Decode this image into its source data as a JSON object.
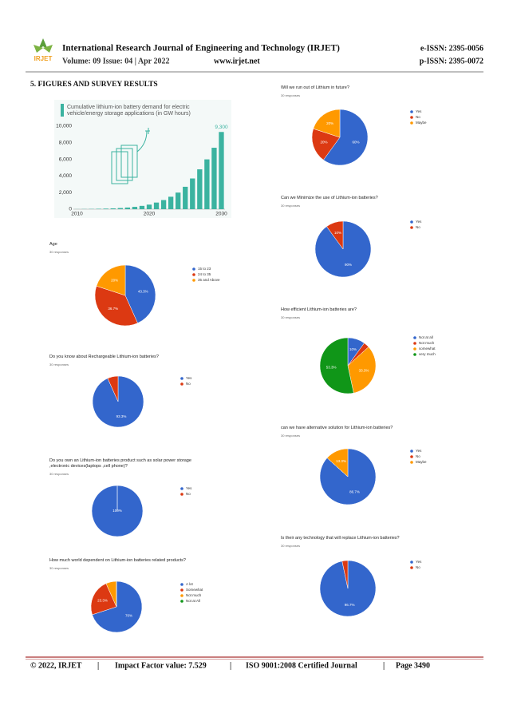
{
  "header": {
    "logo": "IRJET",
    "journal": "International Research Journal of Engineering and Technology (IRJET)",
    "eissn": "e-ISSN: 2395-0056",
    "volume": "Volume: 09 Issue: 04 | Apr 2022",
    "website": "www.irjet.net",
    "pissn": "p-ISSN: 2395-0072"
  },
  "section_title": "5. FIGURES AND SURVEY RESULTS",
  "chart_data": [
    {
      "type": "bar",
      "title": "Cumulative lithium-ion battery demand for electric vehicle/energy storage applications (in GW hours)",
      "categories": [
        "2010",
        null,
        null,
        null,
        null,
        null,
        null,
        null,
        null,
        null,
        "2020",
        null,
        null,
        null,
        null,
        null,
        null,
        null,
        null,
        null,
        "2030"
      ],
      "values": [
        10,
        20,
        30,
        50,
        70,
        100,
        140,
        200,
        280,
        400,
        550,
        800,
        1100,
        1500,
        2000,
        2700,
        3700,
        4800,
        6000,
        7400,
        9300
      ],
      "value_labels": [
        null,
        null,
        null,
        null,
        null,
        null,
        null,
        null,
        null,
        null,
        null,
        null,
        null,
        null,
        null,
        null,
        null,
        null,
        null,
        null,
        "9,300"
      ],
      "color": "#3bb3a0",
      "ylim": [
        0,
        10000
      ],
      "yticks": [
        0,
        {
          "value": 2000,
          "label": "2,000"
        },
        {
          "value": 4000,
          "label": "4,000"
        },
        {
          "value": 6000,
          "label": "6,000"
        },
        {
          "value": 8000,
          "label": "8,000"
        },
        {
          "value": 10000,
          "label": "10,000"
        }
      ],
      "grid": false
    },
    {
      "type": "pie",
      "title": "Age",
      "subtitle": "30 responses",
      "categories": [
        "15 to 23",
        "24 to 35",
        "35 and Above"
      ],
      "values": [
        43.3,
        36.7,
        20
      ],
      "value_labels": [
        "43.3%",
        "36.7%",
        "20%"
      ],
      "colors": [
        "#3366cc",
        "#dc3912",
        "#ff9900"
      ]
    },
    {
      "type": "pie",
      "title": "Do you know about Rechargeable Lithium-ion batteries?",
      "subtitle": "30 responses",
      "categories": [
        "Yes",
        "No"
      ],
      "values": [
        93.3,
        6.7
      ],
      "value_labels": [
        "93.3%",
        null
      ],
      "colors": [
        "#3366cc",
        "#dc3912"
      ]
    },
    {
      "type": "pie",
      "title": "Do you own an Lithium-ion batteries product such as solar power storage ,electronic devices(laptops ,cell phone)?",
      "subtitle": "30 responses",
      "categories": [
        "Yes",
        "No"
      ],
      "values": [
        100,
        0
      ],
      "value_labels": [
        "100%",
        null
      ],
      "colors": [
        "#3366cc",
        "#dc3912"
      ]
    },
    {
      "type": "pie",
      "title": "How much world dependent on Lithium-ion batteries related products?",
      "subtitle": "30 responses",
      "categories": [
        "A lot",
        "Somewhat",
        "Not much",
        "Not at All"
      ],
      "values": [
        70,
        23.3,
        6.7,
        0
      ],
      "value_labels": [
        "70%",
        "23.3%",
        null,
        null
      ],
      "colors": [
        "#3366cc",
        "#dc3912",
        "#ff9900",
        "#109618"
      ]
    },
    {
      "type": "pie",
      "title": "Will we run out of Lithium in future?",
      "subtitle": "30 responses",
      "categories": [
        "Yes",
        "No",
        "Maybe"
      ],
      "values": [
        60,
        20,
        20
      ],
      "value_labels": [
        "60%",
        "20%",
        "20%"
      ],
      "colors": [
        "#3366cc",
        "#dc3912",
        "#ff9900"
      ]
    },
    {
      "type": "pie",
      "title": "Can we Minimize the use of Lithium-ion batteries?",
      "subtitle": "30 responses",
      "categories": [
        "Yes",
        "No"
      ],
      "values": [
        90,
        10
      ],
      "value_labels": [
        "90%",
        "10%"
      ],
      "colors": [
        "#3366cc",
        "#dc3912"
      ]
    },
    {
      "type": "pie",
      "title": "How efficient Lithium-ion batteries are?",
      "subtitle": "30 responses",
      "categories": [
        "Not at all",
        "Not much",
        "somewhat",
        "very much"
      ],
      "values": [
        10,
        3.3,
        33.3,
        53.3
      ],
      "value_labels": [
        "10%",
        null,
        "33.3%",
        "53.3%"
      ],
      "colors": [
        "#3366cc",
        "#dc3912",
        "#ff9900",
        "#109618"
      ]
    },
    {
      "type": "pie",
      "title": "can we have alternative solution for Lithium-ion batteries?",
      "subtitle": "30 responses",
      "categories": [
        "Yes",
        "No",
        "Maybe"
      ],
      "values": [
        86.7,
        0,
        13.3
      ],
      "value_labels": [
        "86.7%",
        null,
        "13.3%"
      ],
      "colors": [
        "#3366cc",
        "#dc3912",
        "#ff9900"
      ]
    },
    {
      "type": "pie",
      "title": "Is their any technology that will replace Lithium-ion batteries?",
      "subtitle": "30 responses",
      "categories": [
        "Yes",
        "No"
      ],
      "values": [
        96.7,
        3.3
      ],
      "value_labels": [
        "96.7%",
        null
      ],
      "colors": [
        "#3366cc",
        "#dc3912"
      ]
    }
  ],
  "footer": {
    "copyright": "© 2022, IRJET",
    "separator": "|",
    "impact": "Impact Factor value: 7.529",
    "iso": "ISO 9001:2008 Certified Journal",
    "page": "Page 3490"
  }
}
